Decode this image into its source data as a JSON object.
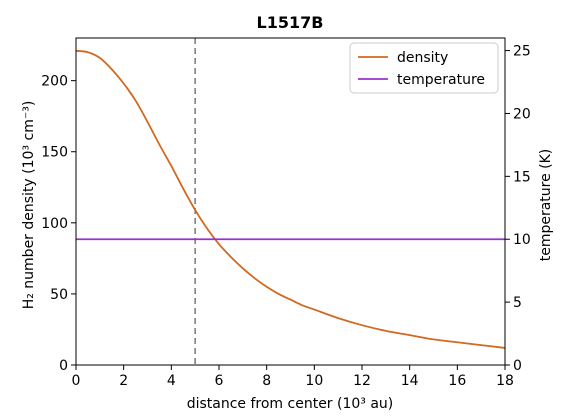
{
  "chart_data": {
    "type": "line",
    "title": "L1517B",
    "xlabel": "distance from center (10³ au)",
    "ylabel": "H₂ number density (10³ cm⁻³)",
    "y2label": "temperature (K)",
    "xlim": [
      0,
      18
    ],
    "ylim": [
      0,
      230
    ],
    "y2lim": [
      0,
      26.0
    ],
    "xticks": [
      0,
      2,
      4,
      6,
      8,
      10,
      12,
      14,
      16,
      18
    ],
    "yticks": [
      0,
      50,
      100,
      150,
      200
    ],
    "y2ticks": [
      0,
      5,
      10,
      15,
      20,
      25
    ],
    "grid": false,
    "legend_position": "top-right",
    "vline_x": 5,
    "series": [
      {
        "name": "density",
        "axis": "left",
        "color": "#d2691e",
        "x": [
          0,
          0.5,
          1,
          1.5,
          2,
          2.5,
          3,
          3.5,
          4,
          4.5,
          5,
          5.5,
          6,
          6.5,
          7,
          7.5,
          8,
          8.5,
          9,
          9.5,
          10,
          11,
          12,
          13,
          14,
          15,
          16,
          17,
          18
        ],
        "values": [
          221,
          220,
          216,
          208,
          198,
          186,
          171,
          155,
          140,
          124,
          109,
          96,
          85,
          76,
          68,
          61,
          55,
          50,
          46,
          42,
          39,
          33,
          28,
          24,
          21,
          18,
          16,
          14,
          12
        ]
      },
      {
        "name": "temperature",
        "axis": "right",
        "color": "#9932cc",
        "x": [
          0,
          18
        ],
        "values": [
          10,
          10
        ]
      }
    ]
  }
}
